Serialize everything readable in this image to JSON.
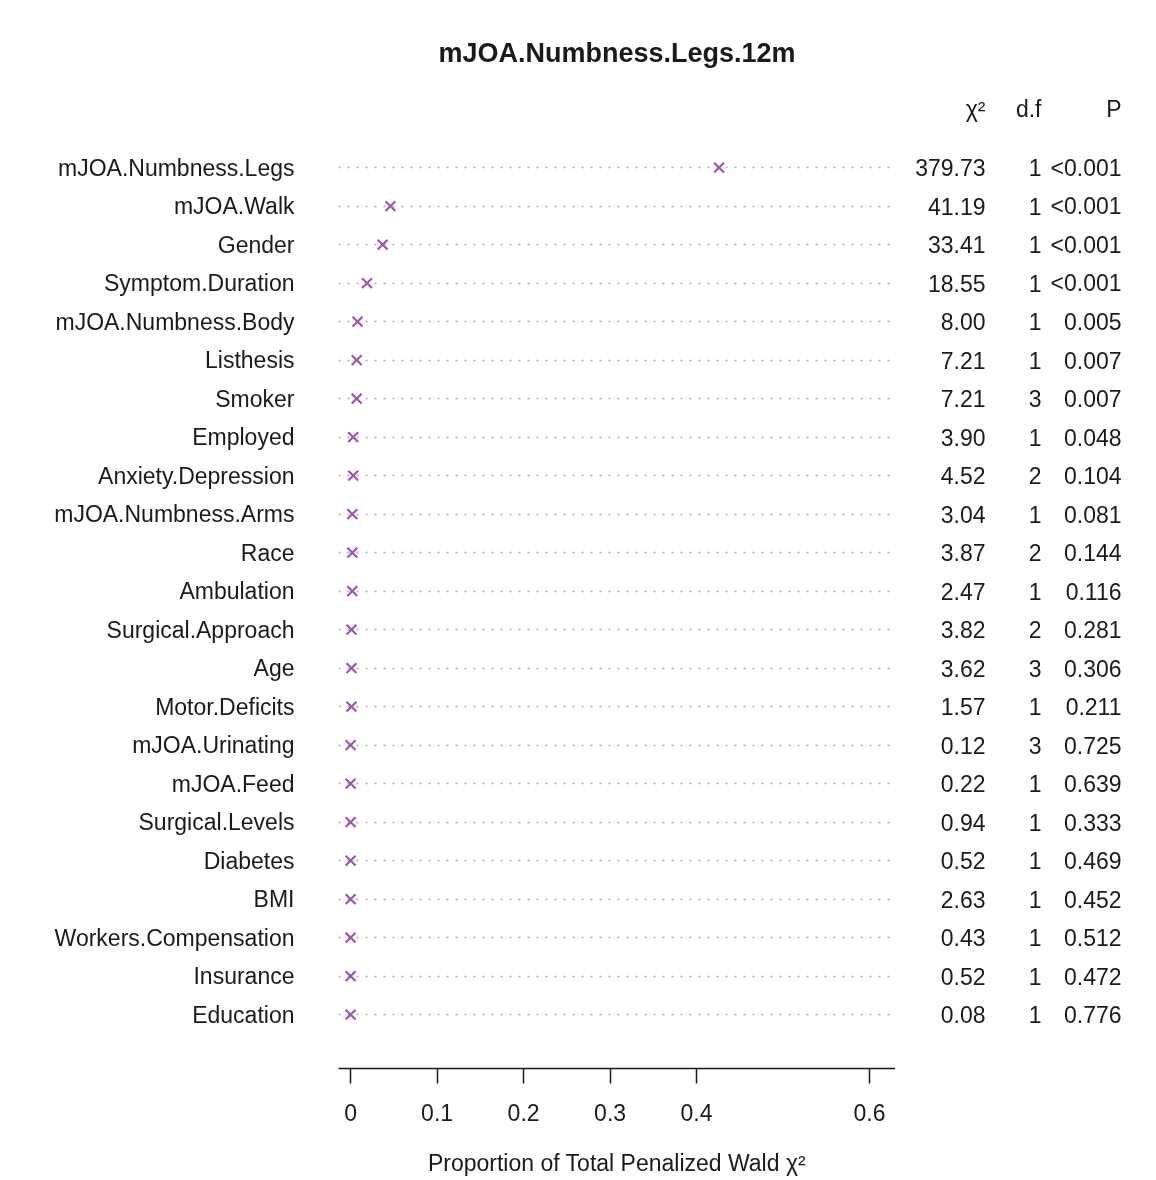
{
  "chart_data": [
    {
      "type": "scatter",
      "orientation": "horizontal",
      "title": "mJOA.Numbness.Legs.12m",
      "xlabel": "Proportion of Total Penalized Wald χ²",
      "categories": [
        "mJOA.Numbness.Legs",
        "mJOA.Walk",
        "Gender",
        "Symptom.Duration",
        "mJOA.Numbness.Body",
        "Listhesis",
        "Smoker",
        "Employed",
        "Anxiety.Depression",
        "mJOA.Numbness.Arms",
        "Race",
        "Ambulation",
        "Surgical.Approach",
        "Age",
        "Motor.Deficits",
        "mJOA.Urinating",
        "mJOA.Feed",
        "Surgical.Levels",
        "Diabetes",
        "BMI",
        "Workers.Compensation",
        "Insurance",
        "Education"
      ],
      "values": [
        0.426,
        0.046,
        0.037,
        0.019,
        0.008,
        0.007,
        0.007,
        0.003,
        0.003,
        0.002,
        0.002,
        0.002,
        0.001,
        0.001,
        0.001,
        0,
        0,
        0,
        0,
        0,
        0,
        0,
        0
      ],
      "color": "#9c55b2",
      "marker": "cross",
      "grid": "y",
      "xlim": [
        -0.014,
        0.63
      ],
      "xticks": [
        0,
        0.1,
        0.2,
        0.3,
        0.4,
        0.6
      ]
    },
    {
      "type": "other",
      "categories": [
        "χ²",
        "d.f",
        "P"
      ],
      "cell_labels": [
        [
          "379.73",
          "1",
          "<0.001"
        ],
        [
          "41.19",
          "1",
          "<0.001"
        ],
        [
          "33.41",
          "1",
          "<0.001"
        ],
        [
          "18.55",
          "1",
          "<0.001"
        ],
        [
          "8.00",
          "1",
          "0.005"
        ],
        [
          "7.21",
          "1",
          "0.007"
        ],
        [
          "7.21",
          "3",
          "0.007"
        ],
        [
          "3.90",
          "1",
          "0.048"
        ],
        [
          "4.52",
          "2",
          "0.104"
        ],
        [
          "3.04",
          "1",
          "0.081"
        ],
        [
          "3.87",
          "2",
          "0.144"
        ],
        [
          "2.47",
          "1",
          "0.116"
        ],
        [
          "3.82",
          "2",
          "0.281"
        ],
        [
          "3.62",
          "3",
          "0.306"
        ],
        [
          "1.57",
          "1",
          "0.211"
        ],
        [
          "0.12",
          "3",
          "0.725"
        ],
        [
          "0.22",
          "1",
          "0.639"
        ],
        [
          "0.94",
          "1",
          "0.333"
        ],
        [
          "0.52",
          "1",
          "0.469"
        ],
        [
          "2.63",
          "1",
          "0.452"
        ],
        [
          "0.43",
          "1",
          "0.512"
        ],
        [
          "0.52",
          "1",
          "0.472"
        ],
        [
          "0.08",
          "1",
          "0.776"
        ]
      ]
    }
  ]
}
